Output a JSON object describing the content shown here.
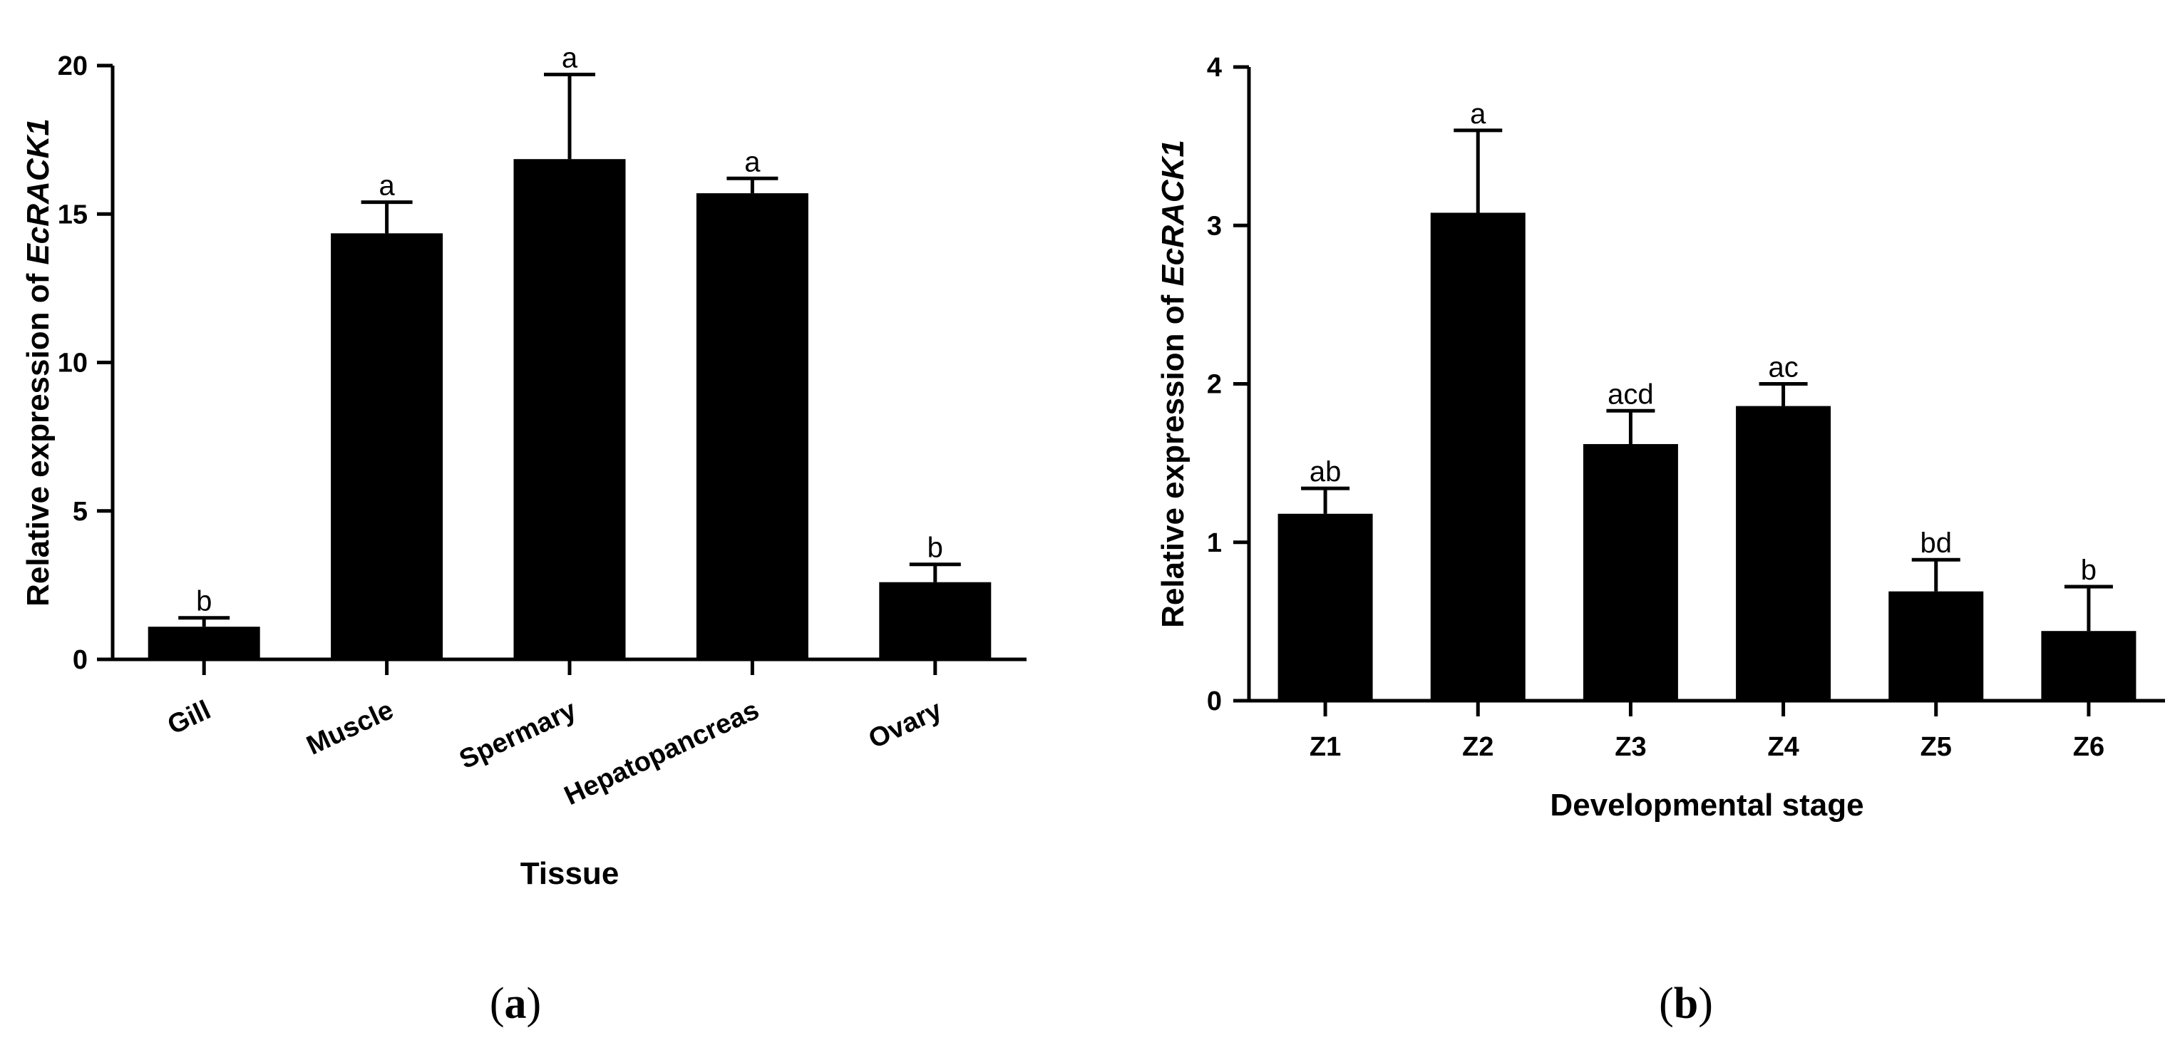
{
  "colors": {
    "bar": "#000000",
    "axis": "#000000",
    "background": "#ffffff"
  },
  "chart_data": [
    {
      "type": "bar",
      "panel_label": "a",
      "title": "",
      "xlabel": "Tissue",
      "ylabel_prefix": "Relative expression of ",
      "ylabel_gene": "EcRACK1",
      "categories": [
        "Gill",
        "Muscle",
        "Spermary",
        "Hepatopancreas",
        "Ovary"
      ],
      "values": [
        1.1,
        14.35,
        16.85,
        15.7,
        2.6
      ],
      "errors": [
        0.3,
        1.05,
        2.85,
        0.5,
        0.6
      ],
      "significance": [
        "b",
        "a",
        "a",
        "a",
        "b"
      ],
      "ylim": [
        0,
        20
      ],
      "yticks": [
        0,
        5,
        10,
        15,
        20
      ],
      "ytick_labels": [
        "0",
        "5",
        "10",
        "15",
        "20"
      ],
      "rotated_xticks": true,
      "grid": false
    },
    {
      "type": "bar",
      "panel_label": "b",
      "title": "",
      "xlabel": "Developmental stage",
      "ylabel_prefix": "Relative expression of ",
      "ylabel_gene": "EcRACK1",
      "categories": [
        "Z1",
        "Z2",
        "Z3",
        "Z4",
        "Z5",
        "Z6"
      ],
      "values": [
        1.18,
        3.08,
        1.62,
        1.86,
        0.69,
        0.44
      ],
      "errors": [
        0.16,
        0.52,
        0.21,
        0.14,
        0.2,
        0.28
      ],
      "significance": [
        "ab",
        "a",
        "acd",
        "ac",
        "bd",
        "b"
      ],
      "ylim": [
        0,
        4
      ],
      "yticks": [
        0,
        1,
        2,
        3,
        4
      ],
      "ytick_labels": [
        "0",
        "1",
        "2",
        "3",
        "4"
      ],
      "rotated_xticks": false,
      "grid": false
    }
  ]
}
